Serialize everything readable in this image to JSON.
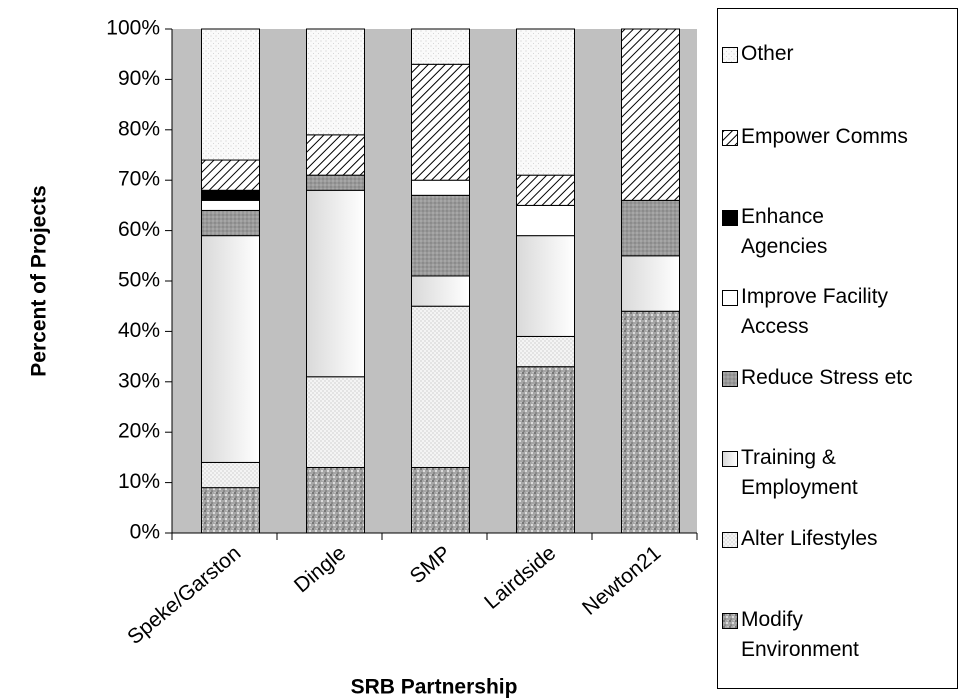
{
  "chart_data": {
    "type": "stacked_bar",
    "x_label": "SRB Partnership",
    "y_label": "Percent of Projects",
    "categories": [
      "Speke/Garston",
      "Dingle",
      "SMP",
      "Lairdside",
      "Newton21"
    ],
    "series": [
      {
        "name": "Modify Environment",
        "color": "#a6a6a6",
        "values": [
          9,
          13,
          13,
          33,
          44
        ]
      },
      {
        "name": "Alter Lifestyles",
        "color": "#f4f4f4",
        "values": [
          5,
          18,
          32,
          6,
          0
        ]
      },
      {
        "name": "Training & Employment",
        "color": "#e6e6e6",
        "values": [
          45,
          37,
          6,
          20,
          11
        ]
      },
      {
        "name": "Reduce Stress etc",
        "color": "#999999",
        "values": [
          5,
          3,
          16,
          0,
          11
        ]
      },
      {
        "name": "Improve Facility Access",
        "color": "#ffffff",
        "values": [
          2,
          0,
          3,
          6,
          0
        ]
      },
      {
        "name": "Enhance Agencies",
        "color": "#000000",
        "values": [
          2,
          0,
          0,
          0,
          0
        ]
      },
      {
        "name": "Empower Comms",
        "color": "#ffffff",
        "values": [
          6,
          8,
          23,
          6,
          34
        ]
      },
      {
        "name": "Other",
        "color": "#fafafa",
        "values": [
          26,
          21,
          7,
          29,
          0
        ]
      }
    ],
    "ylim": [
      0,
      100
    ],
    "yticks": [
      {
        "value": 0,
        "label": "0%"
      },
      {
        "value": 10,
        "label": "10%"
      },
      {
        "value": 20,
        "label": "20%"
      },
      {
        "value": 30,
        "label": "30%"
      },
      {
        "value": 40,
        "label": "40%"
      },
      {
        "value": 50,
        "label": "50%"
      },
      {
        "value": 60,
        "label": "60%"
      },
      {
        "value": 70,
        "label": "70%"
      },
      {
        "value": 80,
        "label": "80%"
      },
      {
        "value": 90,
        "label": "90%"
      },
      {
        "value": 100,
        "label": "100%"
      }
    ],
    "plot_background": "#c0c0c0",
    "legend": "right"
  }
}
